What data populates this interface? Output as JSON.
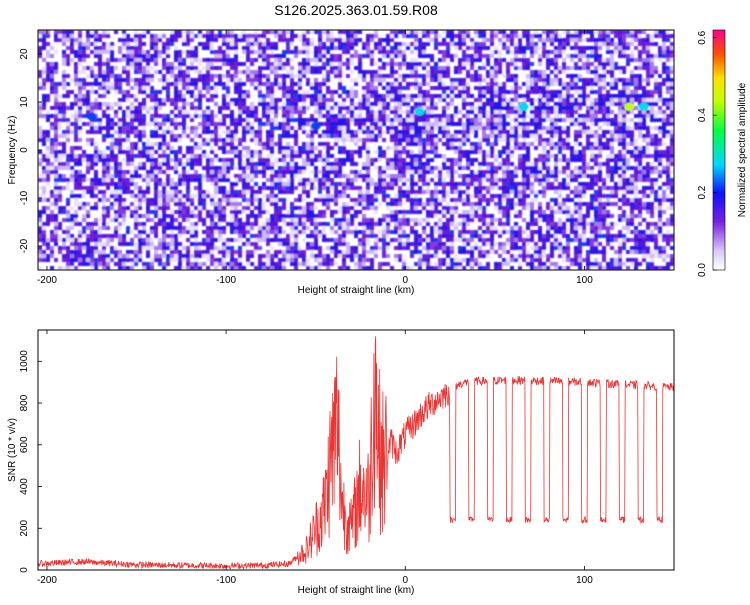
{
  "title": "S126.2025.363.01.59.R08",
  "chart_data": [
    {
      "type": "heatmap",
      "xlabel": "Height of straight line (km)",
      "ylabel": "Frequency (Hz)",
      "xlim": [
        -205,
        150
      ],
      "ylim": [
        -25,
        25
      ],
      "xticks": [
        "-200",
        "-100",
        "0",
        "100"
      ],
      "yticks": [
        "20",
        "10",
        "0",
        "-10",
        "-20"
      ],
      "colorbar": {
        "label": "Normalized spectral amplitude",
        "range": [
          0.0,
          0.62
        ],
        "ticks": [
          "0.0",
          "0.2",
          "0.4",
          "0.6"
        ]
      },
      "features": [
        {
          "x": 8,
          "y": 8,
          "amplitude": 0.25
        },
        {
          "x": 66,
          "y": 9,
          "amplitude": 0.25
        },
        {
          "x": 125,
          "y": 9,
          "amplitude": 0.45
        },
        {
          "x": 133,
          "y": 9,
          "amplitude": 0.25
        },
        {
          "x": -50,
          "y": 5,
          "amplitude": 0.22
        },
        {
          "x": -175,
          "y": 7,
          "amplitude": 0.15
        }
      ]
    },
    {
      "type": "line",
      "xlabel": "Height of straight line (km)",
      "ylabel": "SNR (10 * v/v)",
      "xlim": [
        -205,
        150
      ],
      "ylim": [
        0,
        1150
      ],
      "xticks": [
        "-200",
        "-100",
        "0",
        "100"
      ],
      "yticks": [
        "0",
        "200",
        "400",
        "600",
        "800",
        "1000"
      ],
      "color": "#ee3333",
      "series": [
        {
          "x": [
            -205,
            -180,
            -150,
            -100,
            -80,
            -65,
            -55,
            -45,
            -42,
            -38,
            -35,
            -30,
            -25,
            -20,
            -17,
            -15,
            -12,
            -8,
            -5,
            0,
            5,
            10,
            15,
            20,
            25,
            30,
            35,
            40,
            60,
            80,
            100,
            120,
            140,
            150
          ],
          "values": [
            30,
            40,
            25,
            20,
            22,
            30,
            100,
            300,
            500,
            700,
            300,
            200,
            400,
            350,
            1000,
            600,
            500,
            620,
            560,
            650,
            700,
            760,
            800,
            830,
            860,
            890,
            900,
            905,
            910,
            905,
            900,
            890,
            880,
            875
          ]
        }
      ],
      "dropouts": {
        "low": 240,
        "start": 25,
        "period": 10.5,
        "count": 12
      }
    }
  ]
}
